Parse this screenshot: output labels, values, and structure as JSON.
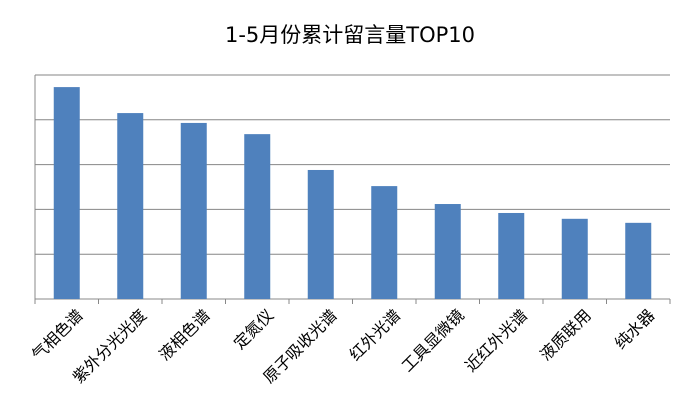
{
  "chart_data": {
    "type": "bar",
    "title": "1-5月份累计留言量TOP10",
    "categories": [
      "气相色谱",
      "紫外分光光度",
      "液相色谱",
      "定氮仪",
      "原子吸收光谱",
      "红外光谱",
      "工具显微镜",
      "近红外光谱",
      "液质联用",
      "纯水器"
    ],
    "values": [
      4.73,
      4.15,
      3.93,
      3.68,
      2.88,
      2.52,
      2.12,
      1.92,
      1.79,
      1.7
    ],
    "color": "#4f81bd",
    "ylim": [
      0,
      5
    ],
    "yticks": [
      0,
      1,
      2,
      3,
      4,
      5
    ],
    "grid": true
  }
}
